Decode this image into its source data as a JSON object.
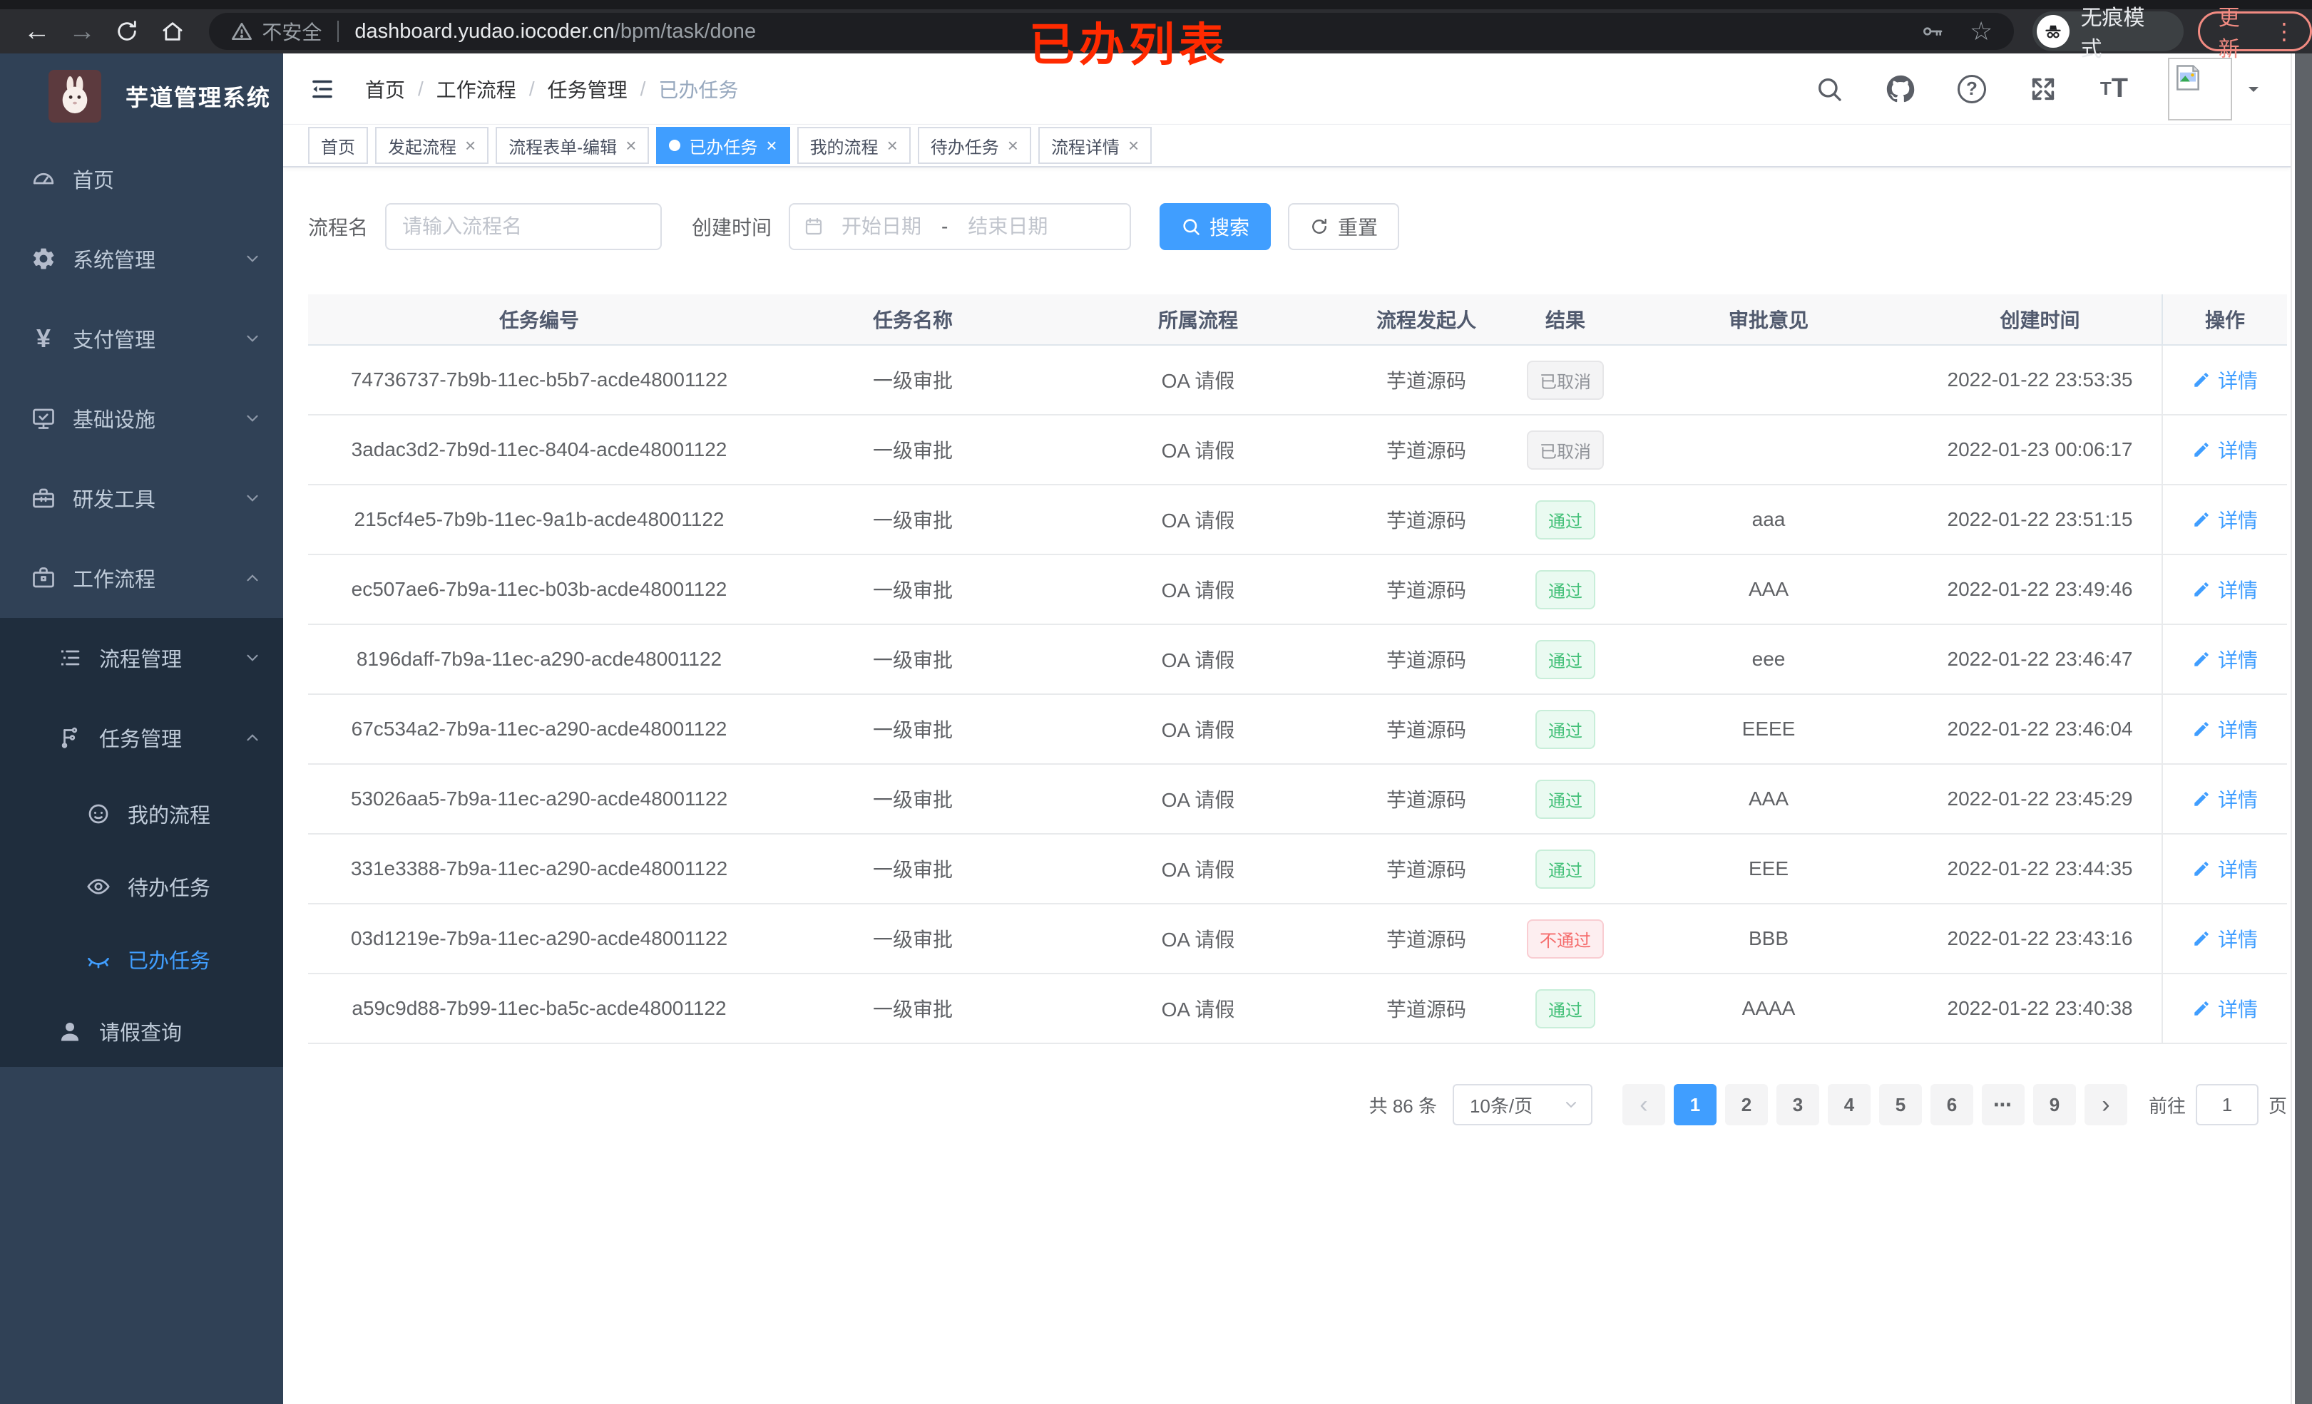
{
  "annotation": {
    "text": "已办列表"
  },
  "browser": {
    "security_label": "不安全",
    "url_host": "dashboard.yudao.iocoder.cn",
    "url_path": "/bpm/task/done",
    "incognito_label": "无痕模式",
    "update_label": "更新"
  },
  "glyphs": {
    "back": "←",
    "forward": "→",
    "star": "☆",
    "yen": "¥",
    "more_vertical": "⋮",
    "close": "×",
    "question_mark": "?",
    "font_small": "T",
    "font_big": "T",
    "prev": "‹",
    "next": "›",
    "pager_more": "⋯"
  },
  "sidebar": {
    "title": "芋道管理系统",
    "items": {
      "home": "首页",
      "system": "系统管理",
      "payment": "支付管理",
      "infra": "基础设施",
      "devtools": "研发工具",
      "workflow": "工作流程",
      "process_mgmt": "流程管理",
      "task_mgmt": "任务管理",
      "my_process": "我的流程",
      "todo_task": "待办任务",
      "done_task": "已办任务",
      "leave_query": "请假查询"
    }
  },
  "header": {
    "breadcrumb": [
      "首页",
      "工作流程",
      "任务管理",
      "已办任务"
    ]
  },
  "tabs": [
    {
      "label": "首页",
      "cls": "no-close"
    },
    {
      "label": "发起流程",
      "cls": ""
    },
    {
      "label": "流程表单-编辑",
      "cls": ""
    },
    {
      "label": "已办任务",
      "cls": "active"
    },
    {
      "label": "我的流程",
      "cls": ""
    },
    {
      "label": "待办任务",
      "cls": ""
    },
    {
      "label": "流程详情",
      "cls": ""
    }
  ],
  "filter": {
    "name_label": "流程名",
    "name_placeholder": "请输入流程名",
    "time_label": "创建时间",
    "start_placeholder": "开始日期",
    "range_separator": "-",
    "end_placeholder": "结束日期",
    "search_label": "搜索",
    "reset_label": "重置"
  },
  "table": {
    "columns": [
      "任务编号",
      "任务名称",
      "所属流程",
      "流程发起人",
      "结果",
      "审批意见",
      "创建时间",
      "操作"
    ],
    "detail_label": "详情",
    "rows": [
      {
        "id": "74736737-7b9b-11ec-b5b7-acde48001122",
        "name": "一级审批",
        "process": "OA 请假",
        "initiator": "芋道源码",
        "result": "已取消",
        "result_type": "info",
        "comment": "",
        "time": "2022-01-22 23:53:35"
      },
      {
        "id": "3adac3d2-7b9d-11ec-8404-acde48001122",
        "name": "一级审批",
        "process": "OA 请假",
        "initiator": "芋道源码",
        "result": "已取消",
        "result_type": "info",
        "comment": "",
        "time": "2022-01-23 00:06:17"
      },
      {
        "id": "215cf4e5-7b9b-11ec-9a1b-acde48001122",
        "name": "一级审批",
        "process": "OA 请假",
        "initiator": "芋道源码",
        "result": "通过",
        "result_type": "success",
        "comment": "aaa",
        "time": "2022-01-22 23:51:15"
      },
      {
        "id": "ec507ae6-7b9a-11ec-b03b-acde48001122",
        "name": "一级审批",
        "process": "OA 请假",
        "initiator": "芋道源码",
        "result": "通过",
        "result_type": "success",
        "comment": "AAA",
        "time": "2022-01-22 23:49:46"
      },
      {
        "id": "8196daff-7b9a-11ec-a290-acde48001122",
        "name": "一级审批",
        "process": "OA 请假",
        "initiator": "芋道源码",
        "result": "通过",
        "result_type": "success",
        "comment": "eee",
        "time": "2022-01-22 23:46:47"
      },
      {
        "id": "67c534a2-7b9a-11ec-a290-acde48001122",
        "name": "一级审批",
        "process": "OA 请假",
        "initiator": "芋道源码",
        "result": "通过",
        "result_type": "success",
        "comment": "EEEE",
        "time": "2022-01-22 23:46:04"
      },
      {
        "id": "53026aa5-7b9a-11ec-a290-acde48001122",
        "name": "一级审批",
        "process": "OA 请假",
        "initiator": "芋道源码",
        "result": "通过",
        "result_type": "success",
        "comment": "AAA",
        "time": "2022-01-22 23:45:29"
      },
      {
        "id": "331e3388-7b9a-11ec-a290-acde48001122",
        "name": "一级审批",
        "process": "OA 请假",
        "initiator": "芋道源码",
        "result": "通过",
        "result_type": "success",
        "comment": "EEE",
        "time": "2022-01-22 23:44:35"
      },
      {
        "id": "03d1219e-7b9a-11ec-a290-acde48001122",
        "name": "一级审批",
        "process": "OA 请假",
        "initiator": "芋道源码",
        "result": "不通过",
        "result_type": "danger",
        "comment": "BBB",
        "time": "2022-01-22 23:43:16"
      },
      {
        "id": "a59c9d88-7b99-11ec-ba5c-acde48001122",
        "name": "一级审批",
        "process": "OA 请假",
        "initiator": "芋道源码",
        "result": "通过",
        "result_type": "success",
        "comment": "AAAA",
        "time": "2022-01-22 23:40:38"
      }
    ]
  },
  "pagination": {
    "total": "共 86 条",
    "page_size": "10条/页",
    "pages": [
      {
        "label": "1",
        "cls": "active"
      },
      {
        "label": "2",
        "cls": ""
      },
      {
        "label": "3",
        "cls": ""
      },
      {
        "label": "4",
        "cls": ""
      },
      {
        "label": "5",
        "cls": ""
      },
      {
        "label": "6",
        "cls": ""
      },
      {
        "label": "⋯",
        "cls": "more"
      },
      {
        "label": "9",
        "cls": ""
      }
    ],
    "goto_label": "前往",
    "goto_value": "1",
    "goto_suffix": "页"
  },
  "colors": {
    "accent": "#409eff",
    "success": "#43c078",
    "danger": "#f56c6c",
    "info": "#909399",
    "sidebar_bg": "#304156",
    "submenu_bg": "#1f2d3d",
    "annotation_red": "#ff2a00"
  }
}
